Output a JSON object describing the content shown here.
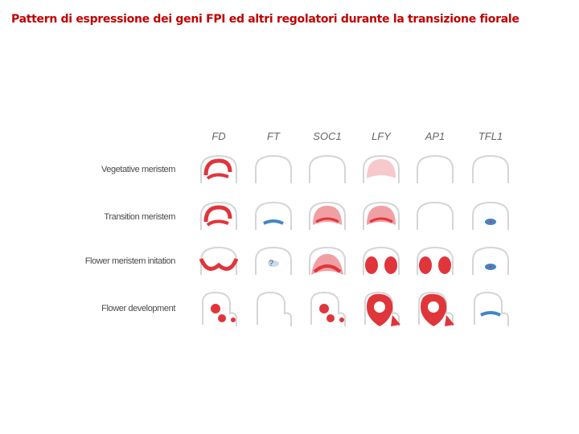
{
  "title": "Pattern di espressione dei geni FPI ed altri regolatori durante la transizione fiorale",
  "genes": [
    "FD",
    "FT",
    "SOC1",
    "LFY",
    "AP1",
    "TFL1"
  ],
  "stages": [
    "Vegetative meristem",
    "Transition meristem",
    "Flower meristem initation",
    "Flower development"
  ],
  "unknown_marker": "?",
  "colors": {
    "title": "#c00000",
    "strong_red": "#e0353b",
    "light_red": "#f0a0a4",
    "pale_red": "#f7c9cc",
    "blue": "#3f86c8",
    "pale_blue": "#c7dcf0",
    "outline": "#d5d5d5"
  },
  "expression": [
    [
      "red-arc",
      "none",
      "none",
      "pale-dome",
      "none",
      "none"
    ],
    [
      "red-arc",
      "blue-band",
      "light-dome",
      "light-dome",
      "none",
      "blue-spot"
    ],
    [
      "red-wings",
      "pale-blue-spot",
      "red-arch",
      "red-lobes",
      "red-lobes",
      "blue-spot"
    ],
    [
      "red-bits",
      "none",
      "red-bits",
      "red-large",
      "red-large",
      "blue-band"
    ]
  ]
}
